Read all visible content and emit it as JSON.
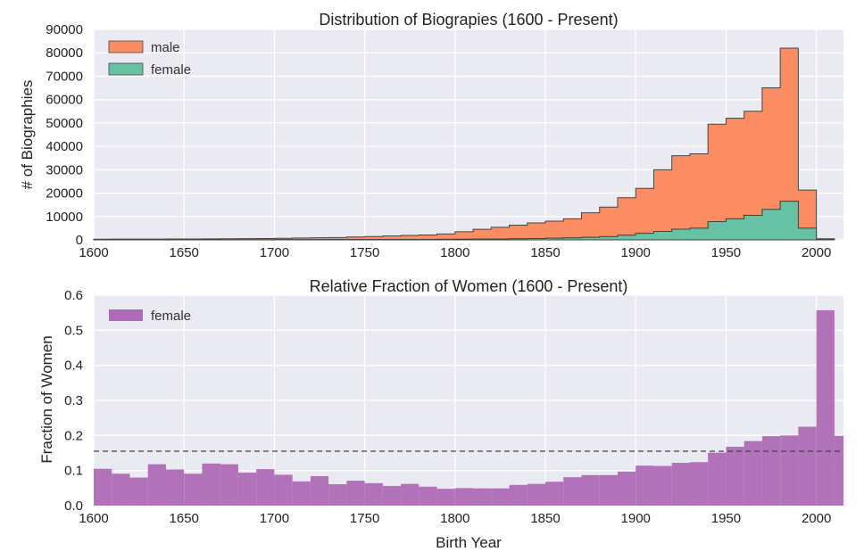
{
  "chart_data": [
    {
      "type": "bar",
      "subtype": "stacked-step-histogram",
      "title": "Distribution of Biograpies (1600 - Present)",
      "xlabel": "",
      "ylabel": "# of Biographies",
      "xlim": [
        1600,
        2015
      ],
      "ylim": [
        0,
        90000
      ],
      "xticks": [
        "1600",
        "1650",
        "1700",
        "1750",
        "1800",
        "1850",
        "1900",
        "1950",
        "2000"
      ],
      "yticks": [
        "0",
        "10000",
        "20000",
        "30000",
        "40000",
        "50000",
        "60000",
        "70000",
        "80000",
        "90000"
      ],
      "legend_position": "top-left",
      "grid": true,
      "bin_edges": [
        1600,
        1610,
        1620,
        1630,
        1640,
        1650,
        1660,
        1670,
        1680,
        1690,
        1700,
        1710,
        1720,
        1730,
        1740,
        1750,
        1760,
        1770,
        1780,
        1790,
        1800,
        1810,
        1820,
        1830,
        1840,
        1850,
        1860,
        1870,
        1880,
        1890,
        1900,
        1910,
        1920,
        1930,
        1940,
        1950,
        1960,
        1970,
        1980,
        1990,
        2000,
        2010
      ],
      "series": [
        {
          "name": "female",
          "color": "#66c2a5",
          "values": [
            30,
            30,
            30,
            40,
            40,
            40,
            50,
            60,
            60,
            70,
            80,
            90,
            100,
            120,
            130,
            150,
            170,
            190,
            210,
            240,
            270,
            330,
            390,
            470,
            560,
            700,
            850,
            1100,
            1400,
            2000,
            2800,
            3600,
            4600,
            5000,
            7800,
            9000,
            10500,
            13000,
            16500,
            5000,
            200
          ]
        },
        {
          "name": "male",
          "color": "#fc8d62",
          "values": [
            270,
            280,
            290,
            300,
            320,
            340,
            370,
            410,
            450,
            500,
            600,
            700,
            800,
            900,
            1100,
            1300,
            1500,
            1700,
            1900,
            2300,
            3200,
            4200,
            5000,
            5800,
            6700,
            7300,
            8150,
            10500,
            12600,
            16000,
            19200,
            26400,
            31400,
            31800,
            41700,
            43000,
            44500,
            52000,
            65500,
            16300,
            300
          ]
        }
      ]
    },
    {
      "type": "bar",
      "subtype": "histogram",
      "title": "Relative Fraction of Women (1600 - Present)",
      "xlabel": "Birth Year",
      "ylabel": "Fraction of Women",
      "xlim": [
        1600,
        2015
      ],
      "ylim": [
        0,
        0.6
      ],
      "xticks": [
        "1600",
        "1650",
        "1700",
        "1750",
        "1800",
        "1850",
        "1900",
        "1950",
        "2000"
      ],
      "yticks": [
        "0.0",
        "0.1",
        "0.2",
        "0.3",
        "0.4",
        "0.5",
        "0.6"
      ],
      "legend_position": "top-left",
      "grid": true,
      "reference_line": 0.155,
      "bin_edges": [
        1600,
        1610,
        1620,
        1630,
        1640,
        1650,
        1660,
        1670,
        1680,
        1690,
        1700,
        1710,
        1720,
        1730,
        1740,
        1750,
        1760,
        1770,
        1780,
        1790,
        1800,
        1810,
        1820,
        1830,
        1840,
        1850,
        1860,
        1870,
        1880,
        1890,
        1900,
        1910,
        1920,
        1930,
        1940,
        1950,
        1960,
        1970,
        1980,
        1990,
        2000,
        2010,
        2015
      ],
      "series": [
        {
          "name": "female",
          "color": "#af6bb5",
          "values": [
            0.105,
            0.091,
            0.08,
            0.118,
            0.103,
            0.091,
            0.12,
            0.118,
            0.094,
            0.104,
            0.088,
            0.069,
            0.084,
            0.061,
            0.071,
            0.064,
            0.056,
            0.062,
            0.054,
            0.048,
            0.05,
            0.049,
            0.049,
            0.059,
            0.062,
            0.068,
            0.081,
            0.087,
            0.087,
            0.097,
            0.114,
            0.113,
            0.122,
            0.124,
            0.151,
            0.168,
            0.184,
            0.198,
            0.2,
            0.225,
            0.557,
            0.199
          ]
        }
      ]
    }
  ]
}
